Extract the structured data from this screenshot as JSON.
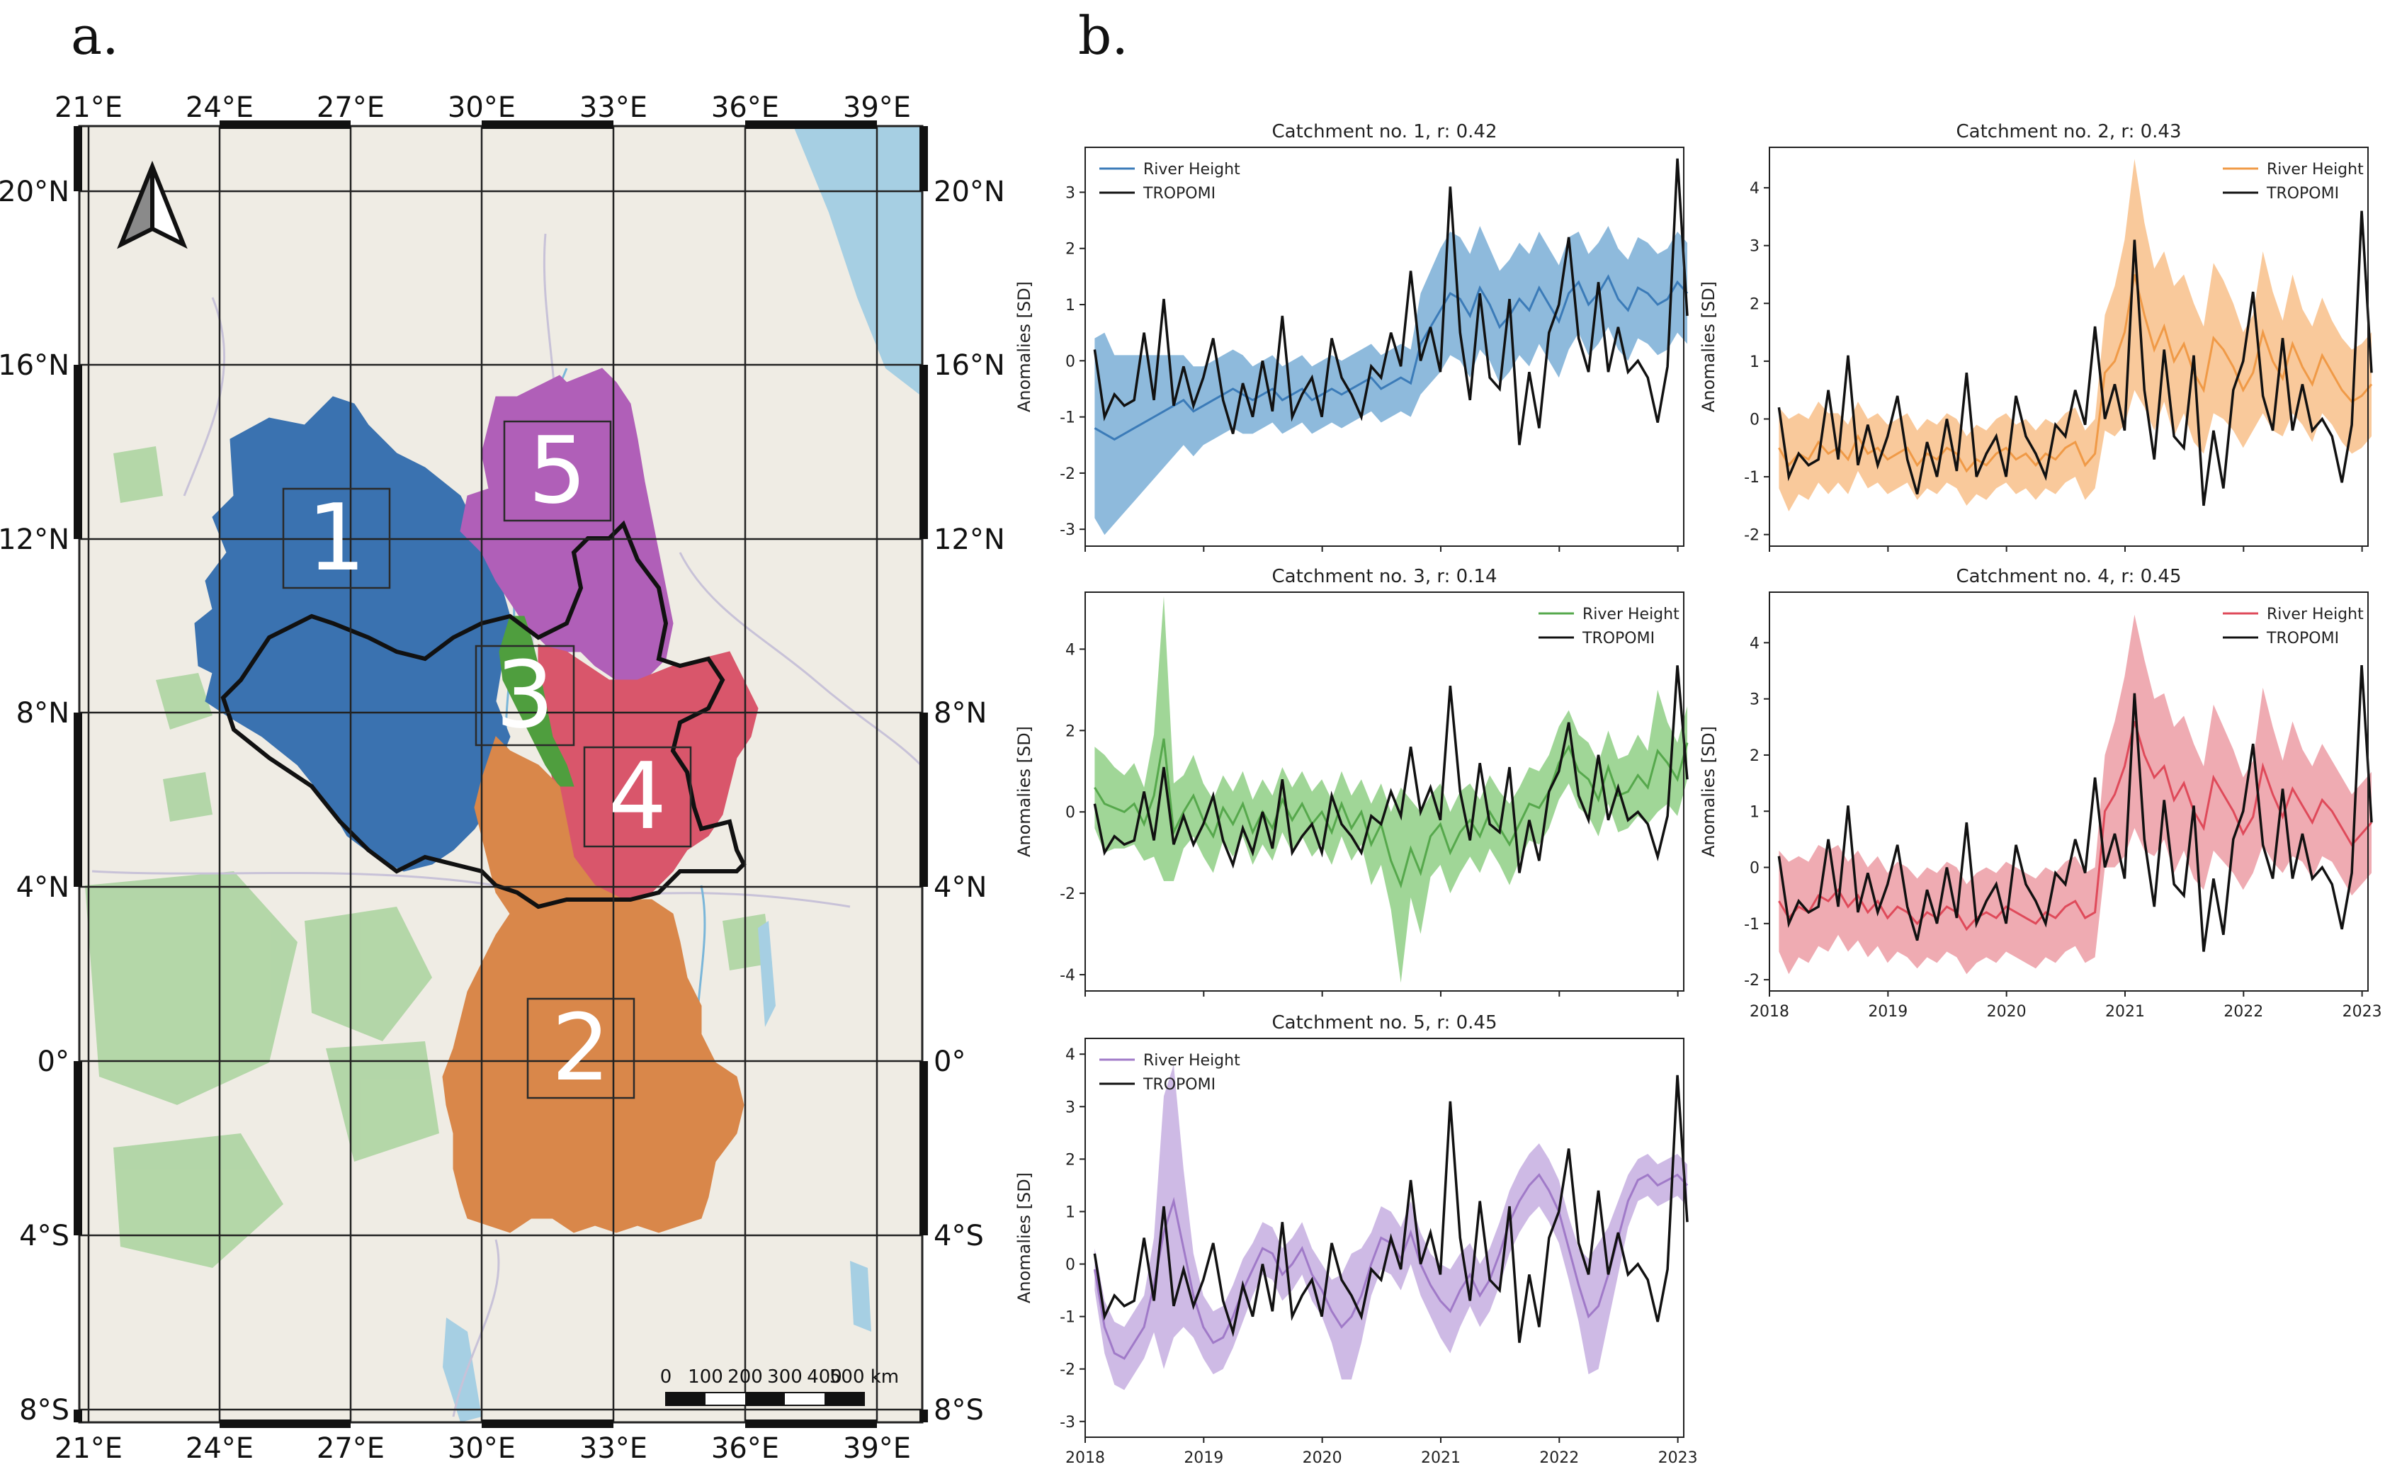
{
  "panels": {
    "a_label": "a.",
    "b_label": "b."
  },
  "map": {
    "lon_labels": [
      "21°E",
      "24°E",
      "27°E",
      "30°E",
      "33°E",
      "36°E",
      "39°E"
    ],
    "lat_labels": [
      "20°N",
      "16°N",
      "12°N",
      "8°N",
      "4°N",
      "0°",
      "4°S",
      "8°S"
    ],
    "catchments": [
      {
        "id": "1",
        "color": "#3a72b0"
      },
      {
        "id": "2",
        "color": "#d9874a"
      },
      {
        "id": "3",
        "color": "#4f9e3e"
      },
      {
        "id": "4",
        "color": "#d9566b"
      },
      {
        "id": "5",
        "color": "#b05fb8"
      }
    ],
    "scale_bar": {
      "labels": [
        "0",
        "100",
        "200",
        "300",
        "400",
        "500 km"
      ]
    },
    "north_arrow": "north-arrow-icon"
  },
  "chart_data": [
    {
      "type": "line",
      "title": "Catchment no. 1, r: 0.42",
      "ylabel": "Anomalies [SD]",
      "ylim": [
        -3.3,
        3.8
      ],
      "yticks": [
        -3,
        -2,
        -1,
        0,
        1,
        2,
        3
      ],
      "xlim": [
        2018.0,
        2023.05
      ],
      "xticks": [
        "2018",
        "2019",
        "2020",
        "2021",
        "2022",
        "2023"
      ],
      "show_xticks": false,
      "legend": "top-left",
      "color": "#3b7bb8",
      "fill": "#7aaed6",
      "river": [
        -1.2,
        -1.3,
        -1.4,
        -1.3,
        -1.2,
        -1.1,
        -1.0,
        -0.9,
        -0.8,
        -0.7,
        -0.9,
        -0.8,
        -0.7,
        -0.6,
        -0.5,
        -0.6,
        -0.7,
        -0.6,
        -0.5,
        -0.7,
        -0.6,
        -0.5,
        -0.7,
        -0.6,
        -0.5,
        -0.6,
        -0.5,
        -0.4,
        -0.3,
        -0.5,
        -0.4,
        -0.3,
        -0.4,
        0.3,
        0.6,
        0.9,
        1.2,
        1.1,
        0.8,
        1.3,
        1.0,
        0.6,
        0.8,
        1.1,
        0.9,
        1.3,
        1.0,
        0.7,
        1.2,
        1.4,
        1.0,
        1.2,
        1.5,
        1.1,
        0.9,
        1.3,
        1.2,
        1.0,
        1.1,
        1.4,
        1.2
      ],
      "band": [
        1.6,
        1.8,
        1.5,
        1.4,
        1.3,
        1.2,
        1.1,
        1.0,
        0.9,
        0.8,
        0.8,
        0.7,
        0.7,
        0.7,
        0.7,
        0.7,
        0.6,
        0.6,
        0.6,
        0.6,
        0.6,
        0.6,
        0.6,
        0.6,
        0.6,
        0.6,
        0.6,
        0.6,
        0.6,
        0.6,
        0.6,
        0.6,
        0.6,
        0.9,
        1.0,
        1.1,
        1.1,
        1.1,
        1.1,
        1.1,
        1.0,
        1.0,
        1.0,
        1.0,
        1.0,
        1.0,
        1.0,
        1.0,
        1.0,
        0.9,
        0.9,
        0.9,
        0.9,
        0.9,
        0.9,
        0.9,
        0.9,
        0.9,
        0.9,
        0.9,
        0.9
      ]
    },
    {
      "type": "line",
      "title": "Catchment no. 2, r: 0.43",
      "ylabel": "Anomalies [SD]",
      "ylim": [
        -2.2,
        4.7
      ],
      "yticks": [
        -2,
        -1,
        0,
        1,
        2,
        3,
        4
      ],
      "xlim": [
        2018.0,
        2023.05
      ],
      "xticks": [
        "2018",
        "2019",
        "2020",
        "2021",
        "2022",
        "2023"
      ],
      "show_xticks": false,
      "legend": "top-right",
      "color": "#f09a47",
      "fill": "#f8c08a",
      "river": [
        -0.5,
        -0.8,
        -0.6,
        -0.7,
        -0.4,
        -0.6,
        -0.5,
        -0.7,
        -0.3,
        -0.6,
        -0.5,
        -0.7,
        -0.6,
        -0.5,
        -0.8,
        -0.6,
        -0.7,
        -0.5,
        -0.6,
        -0.9,
        -0.7,
        -0.8,
        -0.6,
        -0.5,
        -0.7,
        -0.6,
        -0.8,
        -0.6,
        -0.7,
        -0.5,
        -0.4,
        -0.8,
        -0.6,
        0.8,
        1.0,
        1.5,
        2.5,
        1.8,
        1.2,
        1.6,
        1.0,
        1.3,
        0.8,
        0.5,
        1.4,
        1.2,
        0.9,
        0.5,
        0.8,
        1.5,
        1.0,
        0.7,
        1.3,
        0.9,
        0.6,
        1.1,
        0.8,
        0.5,
        0.3,
        0.4,
        0.6
      ],
      "band": [
        0.7,
        0.8,
        0.7,
        0.7,
        0.7,
        0.7,
        0.6,
        0.6,
        0.6,
        0.6,
        0.6,
        0.6,
        0.6,
        0.6,
        0.6,
        0.6,
        0.6,
        0.6,
        0.6,
        0.6,
        0.6,
        0.6,
        0.6,
        0.6,
        0.6,
        0.6,
        0.6,
        0.6,
        0.6,
        0.6,
        0.6,
        0.6,
        0.6,
        1.0,
        1.3,
        1.6,
        2.0,
        1.6,
        1.4,
        1.3,
        1.3,
        1.2,
        1.2,
        1.1,
        1.3,
        1.2,
        1.1,
        1.0,
        1.0,
        1.4,
        1.2,
        1.0,
        1.2,
        1.0,
        1.0,
        1.0,
        0.9,
        0.9,
        0.9,
        0.9,
        0.9
      ]
    },
    {
      "type": "line",
      "title": "Catchment no. 3, r: 0.14",
      "ylabel": "Anomalies [SD]",
      "ylim": [
        -4.4,
        5.4
      ],
      "yticks": [
        -4,
        -2,
        0,
        2,
        4
      ],
      "xlim": [
        2018.0,
        2023.05
      ],
      "xticks": [
        "2018",
        "2019",
        "2020",
        "2021",
        "2022",
        "2023"
      ],
      "show_xticks": false,
      "legend": "top-right",
      "color": "#56a84c",
      "fill": "#8fcf85",
      "river": [
        0.6,
        0.2,
        0.1,
        0.0,
        0.2,
        -0.3,
        0.4,
        1.8,
        -0.5,
        0.0,
        0.4,
        -0.2,
        -0.6,
        0.1,
        -0.3,
        0.2,
        -0.5,
        0.0,
        -0.4,
        0.3,
        -0.2,
        0.2,
        -0.3,
        0.0,
        -0.5,
        0.2,
        -0.4,
        0.0,
        -0.8,
        -0.3,
        -1.2,
        -1.8,
        -0.9,
        -1.5,
        -0.6,
        -0.3,
        -1.0,
        -0.5,
        -0.2,
        -0.6,
        0.0,
        -0.4,
        -0.8,
        -0.3,
        0.2,
        0.1,
        0.5,
        1.2,
        1.6,
        1.0,
        0.8,
        0.3,
        1.1,
        0.4,
        0.5,
        0.9,
        0.6,
        1.5,
        1.2,
        0.8,
        1.7
      ],
      "band": [
        1.0,
        1.2,
        1.0,
        0.9,
        1.0,
        0.9,
        1.5,
        3.5,
        1.2,
        0.9,
        1.0,
        0.9,
        0.9,
        0.8,
        0.8,
        0.8,
        0.8,
        0.8,
        0.8,
        0.8,
        0.8,
        0.8,
        0.8,
        0.8,
        0.8,
        0.8,
        0.8,
        0.8,
        1.0,
        1.0,
        1.2,
        2.4,
        1.2,
        1.5,
        1.0,
        1.0,
        1.0,
        1.0,
        0.9,
        0.9,
        0.9,
        0.9,
        1.0,
        0.9,
        0.9,
        0.9,
        0.9,
        0.9,
        0.9,
        0.9,
        0.9,
        0.9,
        0.9,
        0.9,
        0.9,
        1.0,
        0.9,
        1.5,
        1.0,
        0.9,
        0.9
      ]
    },
    {
      "type": "line",
      "title": "Catchment no. 4, r: 0.45",
      "ylabel": "Anomalies [SD]",
      "ylim": [
        -2.2,
        4.9
      ],
      "yticks": [
        -2,
        -1,
        0,
        1,
        2,
        3,
        4
      ],
      "xlim": [
        2018.0,
        2023.05
      ],
      "xticks": [
        "2018",
        "2019",
        "2020",
        "2021",
        "2022",
        "2023"
      ],
      "show_xticks": true,
      "legend": "top-right",
      "color": "#df4a5a",
      "fill": "#ec9ca4",
      "river": [
        -0.6,
        -0.9,
        -0.7,
        -0.8,
        -0.5,
        -0.6,
        -0.4,
        -0.7,
        -0.5,
        -0.8,
        -0.6,
        -0.9,
        -0.7,
        -0.8,
        -1.0,
        -0.8,
        -0.9,
        -0.7,
        -0.8,
        -1.1,
        -0.9,
        -0.8,
        -0.9,
        -0.7,
        -0.8,
        -0.9,
        -1.0,
        -0.8,
        -0.9,
        -0.7,
        -0.6,
        -0.9,
        -0.8,
        1.0,
        1.3,
        1.8,
        2.6,
        2.0,
        1.6,
        1.8,
        1.2,
        1.5,
        1.0,
        0.7,
        1.6,
        1.3,
        1.0,
        0.6,
        0.9,
        1.8,
        1.3,
        0.9,
        1.4,
        1.1,
        0.8,
        1.2,
        1.0,
        0.7,
        0.4,
        0.6,
        0.8
      ],
      "band": [
        0.9,
        1.0,
        0.9,
        0.9,
        0.9,
        0.9,
        0.8,
        0.8,
        0.8,
        0.8,
        0.8,
        0.8,
        0.8,
        0.8,
        0.8,
        0.8,
        0.8,
        0.8,
        0.8,
        0.8,
        0.8,
        0.8,
        0.8,
        0.8,
        0.8,
        0.8,
        0.8,
        0.8,
        0.8,
        0.8,
        0.8,
        0.8,
        0.8,
        1.0,
        1.3,
        1.6,
        1.9,
        1.7,
        1.4,
        1.3,
        1.3,
        1.2,
        1.2,
        1.1,
        1.3,
        1.2,
        1.1,
        1.0,
        1.0,
        1.4,
        1.2,
        1.0,
        1.2,
        1.0,
        1.0,
        1.0,
        0.9,
        0.9,
        0.9,
        0.9,
        0.9
      ]
    },
    {
      "type": "line",
      "title": "Catchment no. 5, r: 0.45",
      "ylabel": "Anomalies [SD]",
      "ylim": [
        -3.3,
        4.3
      ],
      "yticks": [
        -3,
        -2,
        -1,
        0,
        1,
        2,
        3,
        4
      ],
      "xlim": [
        2018.0,
        2023.05
      ],
      "xticks": [
        "2018",
        "2019",
        "2020",
        "2021",
        "2022",
        "2023"
      ],
      "show_xticks": true,
      "legend": "top-left",
      "color": "#a07ac8",
      "fill": "#c6aee0",
      "river": [
        -0.1,
        -1.2,
        -1.7,
        -1.8,
        -1.5,
        -1.2,
        -0.4,
        0.6,
        1.2,
        0.3,
        -0.6,
        -1.2,
        -1.5,
        -1.4,
        -1.0,
        -0.5,
        -0.1,
        0.3,
        0.2,
        -0.2,
        0.0,
        0.3,
        -0.2,
        -0.5,
        -0.9,
        -1.2,
        -1.0,
        -0.6,
        0.0,
        0.5,
        0.4,
        0.1,
        0.6,
        0.0,
        -0.4,
        -0.7,
        -0.9,
        -0.5,
        -0.2,
        -0.6,
        -0.3,
        0.2,
        0.8,
        1.2,
        1.5,
        1.7,
        1.4,
        1.0,
        0.3,
        -0.4,
        -1.0,
        -0.8,
        -0.2,
        0.5,
        1.2,
        1.6,
        1.7,
        1.5,
        1.6,
        1.7,
        1.5
      ],
      "band": [
        0.4,
        0.5,
        0.6,
        0.6,
        0.6,
        0.6,
        0.9,
        2.6,
        2.6,
        1.5,
        0.8,
        0.6,
        0.6,
        0.6,
        0.6,
        0.6,
        0.5,
        0.5,
        0.5,
        0.5,
        0.5,
        0.5,
        0.5,
        0.5,
        0.6,
        1.0,
        1.2,
        0.9,
        0.6,
        0.6,
        0.6,
        0.6,
        0.6,
        0.6,
        0.6,
        0.7,
        0.8,
        0.7,
        0.6,
        0.6,
        0.6,
        0.6,
        0.6,
        0.6,
        0.6,
        0.6,
        0.6,
        0.6,
        0.6,
        0.7,
        1.1,
        1.2,
        0.9,
        0.7,
        0.5,
        0.4,
        0.4,
        0.4,
        0.4,
        0.4,
        0.4
      ]
    }
  ],
  "tropomi": [
    0.2,
    -1.0,
    -0.6,
    -0.8,
    -0.7,
    0.5,
    -0.7,
    1.1,
    -0.8,
    -0.1,
    -0.8,
    -0.3,
    0.4,
    -0.7,
    -1.3,
    -0.4,
    -1.0,
    0.0,
    -0.9,
    0.8,
    -1.0,
    -0.6,
    -0.3,
    -1.0,
    0.4,
    -0.3,
    -0.6,
    -1.0,
    -0.1,
    -0.3,
    0.5,
    -0.1,
    1.6,
    0.0,
    0.6,
    -0.2,
    3.1,
    0.5,
    -0.7,
    1.2,
    -0.3,
    -0.5,
    1.1,
    -1.5,
    -0.2,
    -1.2,
    0.5,
    1.0,
    2.2,
    0.4,
    -0.2,
    1.4,
    -0.2,
    0.6,
    -0.2,
    0.0,
    -0.3,
    -1.1,
    -0.1,
    3.6,
    0.8
  ],
  "legend": {
    "river_label": "River Height",
    "tropomi_label": "TROPOMI",
    "tropomi_color": "#111111"
  }
}
